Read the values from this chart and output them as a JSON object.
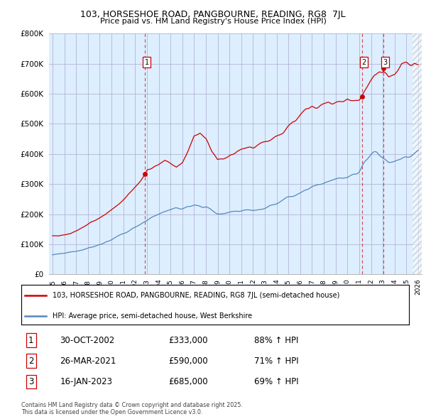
{
  "title": "103, HORSESHOE ROAD, PANGBOURNE, READING, RG8  7JL",
  "subtitle": "Price paid vs. HM Land Registry's House Price Index (HPI)",
  "red_label": "103, HORSESHOE ROAD, PANGBOURNE, READING, RG8 7JL (semi-detached house)",
  "blue_label": "HPI: Average price, semi-detached house, West Berkshire",
  "ylim": [
    0,
    800000
  ],
  "yticks": [
    0,
    100000,
    200000,
    300000,
    400000,
    500000,
    600000,
    700000,
    800000
  ],
  "ytick_labels": [
    "£0",
    "£100K",
    "£200K",
    "£300K",
    "£400K",
    "£500K",
    "£600K",
    "£700K",
    "£800K"
  ],
  "sale_markers": [
    {
      "date_num": 2002.83,
      "price": 333000,
      "label": "1",
      "date_str": "30-OCT-2002",
      "price_str": "£333,000",
      "pct": "88% ↑ HPI"
    },
    {
      "date_num": 2021.23,
      "price": 590000,
      "label": "2",
      "date_str": "26-MAR-2021",
      "price_str": "£590,000",
      "pct": "71% ↑ HPI"
    },
    {
      "date_num": 2023.04,
      "price": 685000,
      "label": "3",
      "date_str": "16-JAN-2023",
      "price_str": "£685,000",
      "pct": "69% ↑ HPI"
    }
  ],
  "footer": "Contains HM Land Registry data © Crown copyright and database right 2025.\nThis data is licensed under the Open Government Licence v3.0.",
  "red_color": "#cc0000",
  "blue_color": "#5588bb",
  "grid_color": "#aaaacc",
  "bg_color": "#ddeeff",
  "xlim_start": 1994.7,
  "xlim_end": 2026.3,
  "hatch_start": 2025.5
}
